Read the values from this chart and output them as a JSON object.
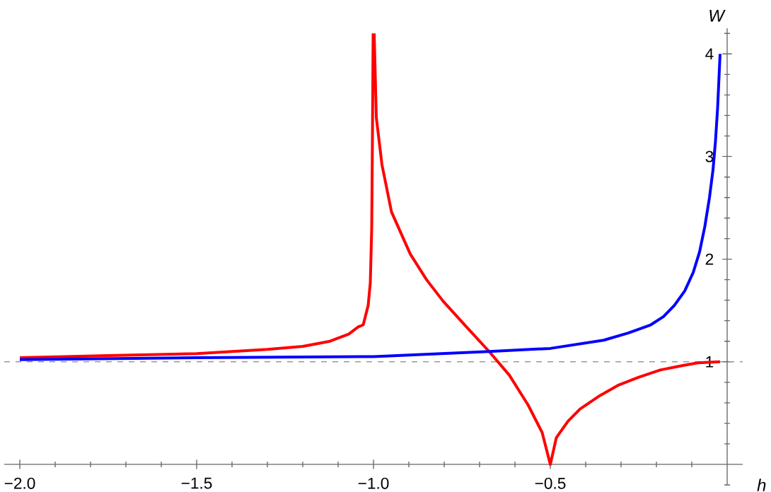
{
  "chart_data": {
    "type": "line",
    "xlabel": "h",
    "ylabel": "W",
    "xlim": [
      -2.044,
      0.044
    ],
    "ylim": [
      -0.2,
      4.25
    ],
    "xticks": [
      {
        "value": -2.0,
        "label": "−2.0"
      },
      {
        "value": -1.9,
        "label": null
      },
      {
        "value": -1.8,
        "label": null
      },
      {
        "value": -1.7,
        "label": null
      },
      {
        "value": -1.6,
        "label": null
      },
      {
        "value": -1.5,
        "label": "−1.5"
      },
      {
        "value": -1.4,
        "label": null
      },
      {
        "value": -1.3,
        "label": null
      },
      {
        "value": -1.2,
        "label": null
      },
      {
        "value": -1.1,
        "label": null
      },
      {
        "value": -1.0,
        "label": "−1.0"
      },
      {
        "value": -0.9,
        "label": null
      },
      {
        "value": -0.8,
        "label": null
      },
      {
        "value": -0.7,
        "label": null
      },
      {
        "value": -0.6,
        "label": null
      },
      {
        "value": -0.5,
        "label": "−0.5"
      },
      {
        "value": -0.4,
        "label": null
      },
      {
        "value": -0.3,
        "label": null
      },
      {
        "value": -0.2,
        "label": null
      },
      {
        "value": -0.1,
        "label": null
      }
    ],
    "yticks": [
      {
        "value": -0.2,
        "label": null
      },
      {
        "value": 0.2,
        "label": null
      },
      {
        "value": 0.4,
        "label": null
      },
      {
        "value": 0.6,
        "label": null
      },
      {
        "value": 0.8,
        "label": null
      },
      1,
      {
        "value": 1.2,
        "label": null
      },
      {
        "value": 1.4,
        "label": null
      },
      {
        "value": 1.6,
        "label": null
      },
      {
        "value": 1.8,
        "label": null
      },
      2,
      {
        "value": 2.2,
        "label": null
      },
      {
        "value": 2.4,
        "label": null
      },
      {
        "value": 2.6,
        "label": null
      },
      {
        "value": 2.8,
        "label": null
      },
      3,
      {
        "value": 3.2,
        "label": null
      },
      {
        "value": 3.4,
        "label": null
      },
      {
        "value": 3.6,
        "label": null
      },
      {
        "value": 3.8,
        "label": null
      },
      4,
      {
        "value": 4.2,
        "label": null
      }
    ],
    "ref_lines": [
      {
        "axis": "y",
        "value": 1,
        "color": "#999999",
        "line_style": "dashed"
      }
    ],
    "line_style": "solid",
    "marker": "none",
    "series": [
      {
        "color": "#ff0000",
        "x": [
          -2.0,
          -1.75,
          -1.5,
          -1.3,
          -1.2,
          -1.123,
          -1.07,
          -1.043,
          -1.029,
          -1.015,
          -1.009,
          -1.005,
          -1.003,
          -1.001,
          -1.0,
          -0.998,
          -0.992,
          -0.976,
          -0.949,
          -0.896,
          -0.85,
          -0.803,
          -0.74,
          -0.673,
          -0.616,
          -0.563,
          -0.523,
          -0.5,
          -0.483,
          -0.45,
          -0.416,
          -0.36,
          -0.309,
          -0.25,
          -0.189,
          -0.13,
          -0.083,
          -0.02
        ],
        "values": [
          1.04,
          1.06,
          1.08,
          1.12,
          1.15,
          1.2,
          1.27,
          1.34,
          1.36,
          1.55,
          1.77,
          2.3,
          3.15,
          4.2,
          null,
          4.2,
          3.38,
          2.92,
          2.46,
          2.05,
          1.8,
          1.59,
          1.35,
          1.1,
          0.87,
          0.58,
          0.31,
          0.0,
          0.26,
          0.42,
          0.54,
          0.67,
          0.77,
          0.85,
          0.92,
          0.96,
          0.99,
          1.0
        ]
      },
      {
        "color": "#0000ff",
        "x": [
          -2.0,
          -1.5,
          -1.0,
          -0.673,
          -0.5,
          -0.349,
          -0.28,
          -0.216,
          -0.18,
          -0.149,
          -0.12,
          -0.096,
          -0.078,
          -0.063,
          -0.05,
          -0.04,
          -0.033,
          -0.027,
          -0.02
        ],
        "values": [
          1.02,
          1.04,
          1.05,
          1.1,
          1.13,
          1.21,
          1.28,
          1.36,
          1.44,
          1.55,
          1.69,
          1.87,
          2.07,
          2.32,
          2.6,
          2.87,
          3.15,
          3.47,
          4.0
        ]
      }
    ]
  }
}
